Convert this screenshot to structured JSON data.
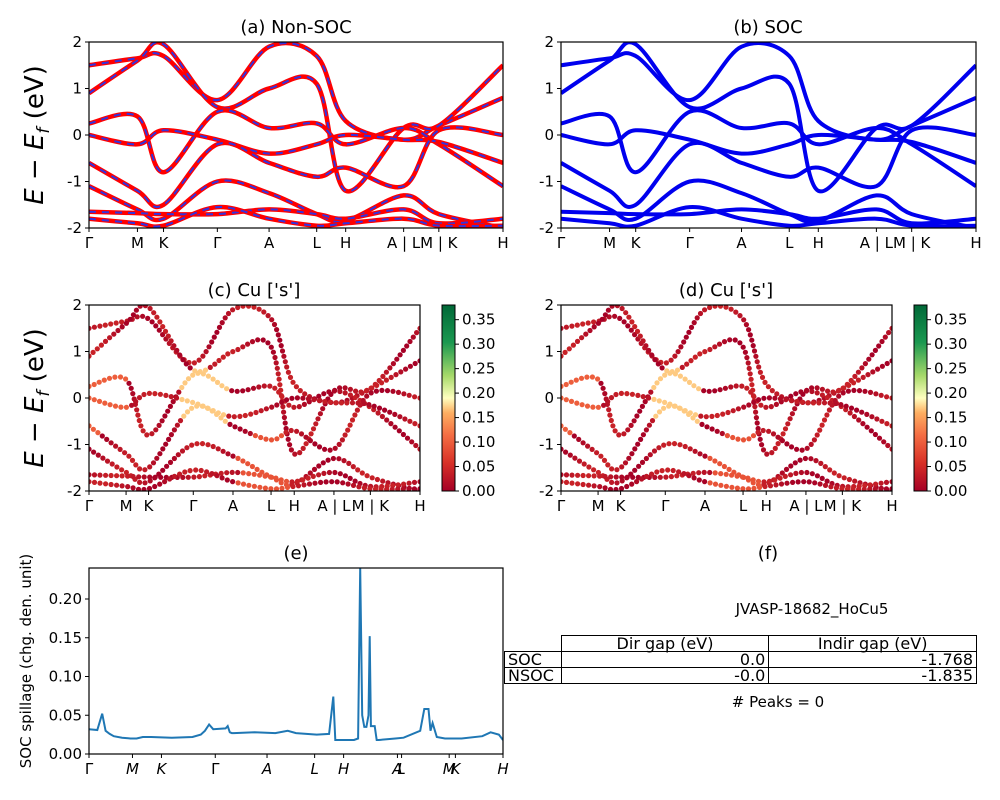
{
  "chart_data": [
    {
      "panel": "a",
      "type": "line",
      "title": "(a) Non-SOC",
      "ylabel": "E − E_f (eV)",
      "ylim": [
        -2,
        2
      ],
      "yticks": [
        -2,
        -1,
        0,
        1,
        2
      ],
      "kpoints": [
        "Γ",
        "M",
        "K",
        "Γ",
        "A",
        "L",
        "H",
        "A | L",
        "M | K",
        "H"
      ],
      "colors": {
        "line": "#ff0000",
        "dash": "#3333dd"
      },
      "bands": [
        {
          "x": [
            0,
            1,
            2,
            3,
            4,
            5,
            6,
            7,
            8,
            9
          ],
          "y": [
            1.5,
            1.65,
            1.7,
            0.75,
            1.9,
            1.7,
            0.3,
            -0.1,
            0.2,
            0.8
          ]
        },
        {
          "x": [
            0,
            1,
            2,
            3,
            4,
            5,
            6,
            7,
            8,
            9
          ],
          "y": [
            0.9,
            1.6,
            1.95,
            0.6,
            1.0,
            1.1,
            -1.2,
            0.15,
            0.2,
            1.5
          ]
        },
        {
          "x": [
            0,
            1,
            2,
            3,
            4,
            5,
            6,
            7,
            8,
            9
          ],
          "y": [
            0.25,
            0.4,
            -0.8,
            0.5,
            0.15,
            0.25,
            -0.2,
            0.15,
            -0.2,
            -1.1
          ]
        },
        {
          "x": [
            0,
            1,
            2,
            3,
            4,
            5,
            6,
            7,
            8,
            9
          ],
          "y": [
            0.0,
            -0.2,
            0.1,
            -0.1,
            -0.4,
            -0.2,
            0.0,
            -0.1,
            -0.15,
            -0.6
          ]
        },
        {
          "x": [
            0,
            1,
            2,
            3,
            4,
            5,
            6,
            7,
            8,
            9
          ],
          "y": [
            -0.6,
            -1.2,
            -1.5,
            -0.2,
            -0.6,
            -0.9,
            -0.7,
            -1.1,
            0.1,
            0.0
          ]
        },
        {
          "x": [
            0,
            1,
            2,
            3,
            4,
            5,
            6,
            7,
            8,
            9
          ],
          "y": [
            -1.1,
            -1.6,
            -1.8,
            -1.0,
            -1.25,
            -1.7,
            -1.85,
            -1.3,
            -1.7,
            -2.0
          ]
        },
        {
          "x": [
            0,
            1,
            2,
            3,
            4,
            5,
            6,
            7,
            8,
            9
          ],
          "y": [
            -1.65,
            -1.68,
            -1.7,
            -1.7,
            -1.6,
            -1.7,
            -1.8,
            -1.6,
            -1.9,
            -1.8
          ]
        },
        {
          "x": [
            0,
            1,
            2,
            3,
            4,
            5,
            6,
            7,
            8,
            9
          ],
          "y": [
            -1.8,
            -1.9,
            -1.95,
            -1.55,
            -1.8,
            -1.95,
            -1.9,
            -1.8,
            -1.95,
            -1.95
          ]
        }
      ]
    },
    {
      "panel": "b",
      "type": "line",
      "title": "(b) SOC",
      "ylim": [
        -2,
        2
      ],
      "yticks": [
        -2,
        -1,
        0,
        1,
        2
      ],
      "kpoints": [
        "Γ",
        "M",
        "K",
        "Γ",
        "A",
        "L",
        "H",
        "A | L",
        "M | K",
        "H"
      ],
      "colors": {
        "line": "#0000ee"
      }
    },
    {
      "panel": "c",
      "type": "scatter",
      "title": "(c)  Cu ['s']",
      "ylabel": "E − E_f (eV)",
      "ylim": [
        -2,
        2
      ],
      "yticks": [
        -2,
        -1,
        0,
        1,
        2
      ],
      "kpoints": [
        "Γ",
        "M",
        "K",
        "Γ",
        "A",
        "L",
        "H",
        "A | L",
        "M | K",
        "H"
      ],
      "colorbar": {
        "ticks": [
          "0.00",
          "0.05",
          "0.10",
          "0.15",
          "0.20",
          "0.25",
          "0.30",
          "0.35"
        ],
        "vmin": 0,
        "vmax": 0.38
      }
    },
    {
      "panel": "d",
      "type": "scatter",
      "title": "(d) Cu ['s']",
      "ylim": [
        -2,
        2
      ],
      "yticks": [
        -2,
        -1,
        0,
        1,
        2
      ],
      "kpoints": [
        "Γ",
        "M",
        "K",
        "Γ",
        "A",
        "L",
        "H",
        "A | L",
        "M | K",
        "H"
      ],
      "colorbar": {
        "ticks": [
          "0.00",
          "0.05",
          "0.10",
          "0.15",
          "0.20",
          "0.25",
          "0.30",
          "0.35"
        ],
        "vmin": 0,
        "vmax": 0.38
      }
    },
    {
      "panel": "e",
      "type": "line",
      "title": "(e)",
      "ylabel": "SOC spillage (chg. den. unit)",
      "ylim": [
        0,
        0.24
      ],
      "yticks": [
        "0.00",
        "0.05",
        "0.10",
        "0.15",
        "0.20"
      ],
      "xticks": [
        {
          "label": "Γ",
          "x": 0
        },
        {
          "label": "M",
          "x": 0.105
        },
        {
          "label": "K",
          "x": 0.175
        },
        {
          "label": "Γ",
          "x": 0.305
        },
        {
          "label": "A",
          "x": 0.43
        },
        {
          "label": "L",
          "x": 0.545
        },
        {
          "label": "H",
          "x": 0.615
        },
        {
          "label": "A",
          "x": 0.745
        },
        {
          "label": "L",
          "x": 0.755
        },
        {
          "label": "M",
          "x": 0.87
        },
        {
          "label": "K",
          "x": 0.885
        },
        {
          "label": "H",
          "x": 1.0
        }
      ],
      "series": [
        {
          "color": "#1f77b4",
          "x": [
            0,
            0.02,
            0.032,
            0.04,
            0.05,
            0.06,
            0.08,
            0.1,
            0.115,
            0.13,
            0.15,
            0.2,
            0.25,
            0.27,
            0.28,
            0.29,
            0.3,
            0.33,
            0.335,
            0.34,
            0.345,
            0.35,
            0.4,
            0.45,
            0.48,
            0.5,
            0.55,
            0.58,
            0.59,
            0.595,
            0.6,
            0.61,
            0.64,
            0.65,
            0.655,
            0.66,
            0.665,
            0.67,
            0.675,
            0.678,
            0.681,
            0.69,
            0.695,
            0.7,
            0.74,
            0.76,
            0.8,
            0.81,
            0.82,
            0.825,
            0.83,
            0.84,
            0.86,
            0.9,
            0.95,
            0.97,
            0.99,
            1.0
          ],
          "y": [
            0.032,
            0.031,
            0.052,
            0.03,
            0.026,
            0.023,
            0.021,
            0.02,
            0.02,
            0.022,
            0.022,
            0.021,
            0.022,
            0.025,
            0.03,
            0.038,
            0.032,
            0.033,
            0.036,
            0.028,
            0.027,
            0.027,
            0.028,
            0.027,
            0.03,
            0.027,
            0.025,
            0.026,
            0.074,
            0.018,
            0.018,
            0.018,
            0.018,
            0.02,
            0.24,
            0.05,
            0.035,
            0.035,
            0.05,
            0.152,
            0.036,
            0.036,
            0.018,
            0.018,
            0.02,
            0.021,
            0.03,
            0.058,
            0.058,
            0.03,
            0.04,
            0.022,
            0.02,
            0.02,
            0.023,
            0.028,
            0.025,
            0.018
          ]
        }
      ]
    }
  ],
  "panel_f": {
    "title": "(f)",
    "material": "JVASP-18682_HoCu5",
    "table": {
      "headers": [
        "",
        "Dir gap (eV)",
        "Indir gap (eV)"
      ],
      "rows": [
        [
          "SOC",
          "0.0",
          "-1.768"
        ],
        [
          "NSOC",
          "-0.0",
          "-1.835"
        ]
      ]
    },
    "peaks": "# Peaks = 0"
  }
}
